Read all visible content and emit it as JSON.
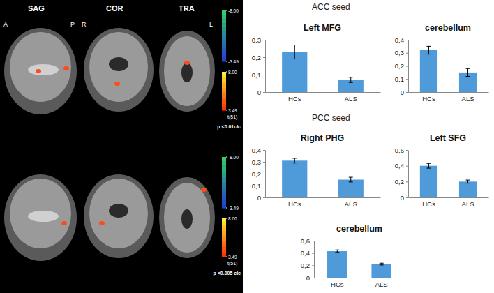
{
  "brain_panel": {
    "rows": [
      {
        "view_labels": [
          "SAG",
          "COR",
          "TRA"
        ],
        "orientation_labels": [
          "A",
          "P",
          "R",
          "L"
        ],
        "colorbar": {
          "title": "t(51)",
          "negative_range": [
            -8,
            -3.49
          ],
          "positive_range": [
            8,
            3.49
          ],
          "ticks": [
            {
              "value": -8,
              "label": "-8.00"
            },
            {
              "value": -3.49,
              "label": "-3.49"
            },
            {
              "value": 8,
              "label": "8.00"
            },
            {
              "value": 3.49,
              "label": "3.49"
            }
          ]
        },
        "threshold": "p <0.01clc"
      },
      {
        "colorbar": {
          "title": "t(51)",
          "negative_range": [
            -8,
            -3.49
          ],
          "positive_range": [
            8,
            3.49
          ],
          "ticks": [
            {
              "value": -8,
              "label": "-8.00"
            },
            {
              "value": -3.49,
              "label": "-3.49"
            },
            {
              "value": 8,
              "label": "8.00"
            },
            {
              "value": 3.49,
              "label": "3.49"
            }
          ]
        },
        "threshold": "p <0.005 clc"
      }
    ]
  },
  "sections": [
    {
      "title": "ACC seed"
    },
    {
      "title": "PCC seed"
    }
  ],
  "chart_data": [
    {
      "type": "bar",
      "title": "Left MFG",
      "categories": [
        "HCs",
        "ALS"
      ],
      "values": [
        0.23,
        0.07
      ],
      "errors": [
        0.04,
        0.015
      ],
      "color": "#4f9bd9",
      "ylim": [
        0,
        0.3
      ],
      "yticks": [
        0,
        {
          "value": 0.1,
          "label": "0,1"
        },
        {
          "value": 0.2,
          "label": "0,2"
        },
        {
          "value": 0.3,
          "label": "0,3"
        }
      ]
    },
    {
      "type": "bar",
      "title": "cerebellum",
      "categories": [
        "HCs",
        "ALS"
      ],
      "values": [
        0.32,
        0.15
      ],
      "errors": [
        0.03,
        0.03
      ],
      "color": "#4f9bd9",
      "ylim": [
        0,
        0.4
      ],
      "yticks": [
        0,
        {
          "value": 0.1,
          "label": "0,1"
        },
        {
          "value": 0.2,
          "label": "0,2"
        },
        {
          "value": 0.3,
          "label": "0,3"
        },
        {
          "value": 0.4,
          "label": "0,4"
        }
      ]
    },
    {
      "type": "bar",
      "title": "Right PHG",
      "categories": [
        "HCs",
        "ALS"
      ],
      "values": [
        0.31,
        0.15
      ],
      "errors": [
        0.02,
        0.02
      ],
      "color": "#4f9bd9",
      "ylim": [
        0,
        0.4
      ],
      "yticks": [
        0,
        {
          "value": 0.1,
          "label": "0,1"
        },
        {
          "value": 0.2,
          "label": "0,2"
        },
        {
          "value": 0.3,
          "label": "0,3"
        },
        {
          "value": 0.4,
          "label": "0,4"
        }
      ]
    },
    {
      "type": "bar",
      "title": "Left SFG",
      "categories": [
        "HCs",
        "ALS"
      ],
      "values": [
        0.4,
        0.2
      ],
      "errors": [
        0.03,
        0.02
      ],
      "color": "#4f9bd9",
      "ylim": [
        0,
        0.6
      ],
      "yticks": [
        0,
        {
          "value": 0.2,
          "label": "0,2"
        },
        {
          "value": 0.4,
          "label": "0,4"
        },
        {
          "value": 0.6,
          "label": "0,6"
        }
      ]
    },
    {
      "type": "bar",
      "title": "cerebellum",
      "categories": [
        "HCs",
        "ALS"
      ],
      "values": [
        0.43,
        0.22
      ],
      "errors": [
        0.02,
        0.015
      ],
      "color": "#4f9bd9",
      "ylim": [
        0,
        0.6
      ],
      "yticks": [
        0,
        {
          "value": 0.2,
          "label": "0,2"
        },
        {
          "value": 0.4,
          "label": "0,4"
        },
        {
          "value": 0.6,
          "label": "0,6"
        }
      ]
    }
  ]
}
